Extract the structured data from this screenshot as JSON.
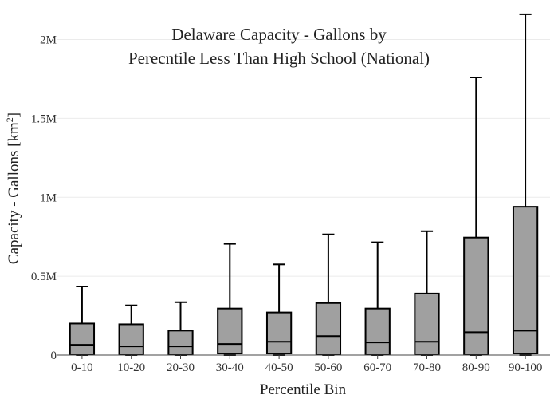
{
  "chart_data": {
    "type": "box",
    "title": [
      "Delaware Capacity - Gallons by",
      "Perecntile Less Than High School (National)"
    ],
    "xlabel": "Percentile Bin",
    "ylabel": "Capacity - Gallons  [km",
    "ylabel_sup": "2",
    "ylabel_close": "]",
    "ylim": [
      0,
      2200000
    ],
    "yticks": [
      {
        "value": 0,
        "label": "0"
      },
      {
        "value": 500000,
        "label": "0.5M"
      },
      {
        "value": 1000000,
        "label": "1M"
      },
      {
        "value": 1500000,
        "label": "1.5M"
      },
      {
        "value": 2000000,
        "label": "2M"
      }
    ],
    "grid": true,
    "categories": [
      "0-10",
      "10-20",
      "20-30",
      "30-40",
      "40-50",
      "50-60",
      "60-70",
      "70-80",
      "80-90",
      "90-100"
    ],
    "boxes": [
      {
        "min": 0,
        "q1": 5000,
        "median": 65000,
        "q3": 200000,
        "max": 435000
      },
      {
        "min": 0,
        "q1": 5000,
        "median": 55000,
        "q3": 195000,
        "max": 315000
      },
      {
        "min": 0,
        "q1": 5000,
        "median": 55000,
        "q3": 155000,
        "max": 335000
      },
      {
        "min": 0,
        "q1": 10000,
        "median": 70000,
        "q3": 295000,
        "max": 705000
      },
      {
        "min": 0,
        "q1": 10000,
        "median": 85000,
        "q3": 270000,
        "max": 575000
      },
      {
        "min": 0,
        "q1": 5000,
        "median": 120000,
        "q3": 330000,
        "max": 765000
      },
      {
        "min": 0,
        "q1": 5000,
        "median": 80000,
        "q3": 295000,
        "max": 715000
      },
      {
        "min": 0,
        "q1": 5000,
        "median": 85000,
        "q3": 390000,
        "max": 785000
      },
      {
        "min": 0,
        "q1": 5000,
        "median": 145000,
        "q3": 745000,
        "max": 1760000
      },
      {
        "min": 0,
        "q1": 10000,
        "median": 155000,
        "q3": 940000,
        "max": 2160000
      }
    ]
  }
}
